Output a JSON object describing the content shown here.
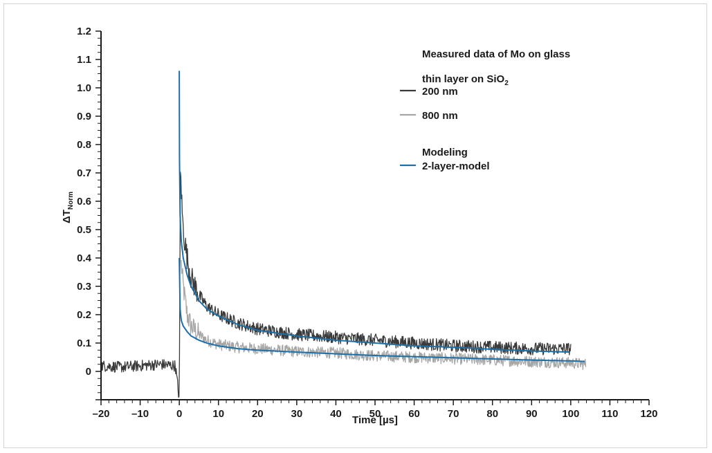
{
  "chart_data": {
    "type": "line",
    "xlabel": "Time [µs]",
    "ylabel_main": "ΔT",
    "ylabel_sub": "Norm",
    "xlim": [
      -20,
      120
    ],
    "ylim": [
      -0.1,
      1.2
    ],
    "xticks": [
      -20,
      -10,
      0,
      10,
      20,
      30,
      40,
      50,
      60,
      70,
      80,
      90,
      100,
      110,
      120
    ],
    "xtick_labels": [
      "–20",
      "–10",
      "0",
      "10",
      "20",
      "30",
      "40",
      "50",
      "60",
      "70",
      "80",
      "90",
      "100",
      "110",
      "120"
    ],
    "yticks": [
      0,
      0.1,
      0.2,
      0.3,
      0.4,
      0.5,
      0.6,
      0.7,
      0.8,
      0.9,
      1.0,
      1.1,
      1.2
    ],
    "ytick_labels": [
      "0",
      "0.1",
      "0.2",
      "0.3",
      "0.4",
      "0.5",
      "0.6",
      "0.7",
      "0.8",
      "0.9",
      "1.0",
      "1.1",
      "1.2"
    ],
    "grid": false,
    "legend": {
      "placement": "top-right",
      "heading1": "Measured data of Mo on glass",
      "heading2_main": "thin layer  on SiO",
      "heading2_sub": "2",
      "heading3": "Modeling"
    },
    "series": [
      {
        "name": "200 nm",
        "color": "#3a3a3a",
        "kind": "measured",
        "x": [
          -20,
          -15,
          -10,
          -5,
          -1,
          0,
          0.3,
          0.6,
          1,
          2,
          3,
          5,
          7,
          10,
          15,
          20,
          25,
          30,
          40,
          50,
          60,
          70,
          80,
          90,
          100
        ],
        "y": [
          0.02,
          0.015,
          0.02,
          0.025,
          0.02,
          -0.1,
          0.74,
          0.6,
          0.5,
          0.4,
          0.33,
          0.27,
          0.23,
          0.2,
          0.17,
          0.15,
          0.14,
          0.13,
          0.12,
          0.11,
          0.1,
          0.09,
          0.085,
          0.08,
          0.08
        ]
      },
      {
        "name": "800 nm",
        "color": "#a6a6a6",
        "kind": "measured",
        "x": [
          0.5,
          1,
          2,
          3,
          5,
          7,
          10,
          15,
          20,
          25,
          30,
          40,
          50,
          60,
          70,
          80,
          90,
          100,
          104
        ],
        "y": [
          0.38,
          0.3,
          0.2,
          0.16,
          0.13,
          0.11,
          0.095,
          0.085,
          0.08,
          0.075,
          0.07,
          0.065,
          0.055,
          0.05,
          0.045,
          0.04,
          0.035,
          0.03,
          0.025
        ]
      },
      {
        "name": "2-layer-model",
        "color": "#1b6fa8",
        "kind": "model",
        "x": [
          0,
          0.05,
          0.2,
          0.5,
          1,
          2,
          3,
          5,
          7,
          10,
          15,
          20,
          30,
          40,
          50,
          60,
          70,
          80,
          90,
          100
        ],
        "y": [
          1.06,
          0.75,
          0.55,
          0.46,
          0.4,
          0.34,
          0.3,
          0.25,
          0.22,
          0.195,
          0.165,
          0.145,
          0.125,
          0.11,
          0.1,
          0.09,
          0.085,
          0.078,
          0.072,
          0.068
        ]
      },
      {
        "name": "",
        "color": "#1b6fa8",
        "kind": "model",
        "x": [
          0,
          0.2,
          0.5,
          1,
          2,
          3,
          5,
          7,
          10,
          15,
          20,
          30,
          40,
          50,
          60,
          70,
          80,
          90,
          100,
          104
        ],
        "y": [
          0.4,
          0.22,
          0.18,
          0.16,
          0.14,
          0.125,
          0.11,
          0.1,
          0.09,
          0.08,
          0.075,
          0.068,
          0.062,
          0.056,
          0.052,
          0.048,
          0.044,
          0.04,
          0.037,
          0.035
        ]
      }
    ]
  }
}
